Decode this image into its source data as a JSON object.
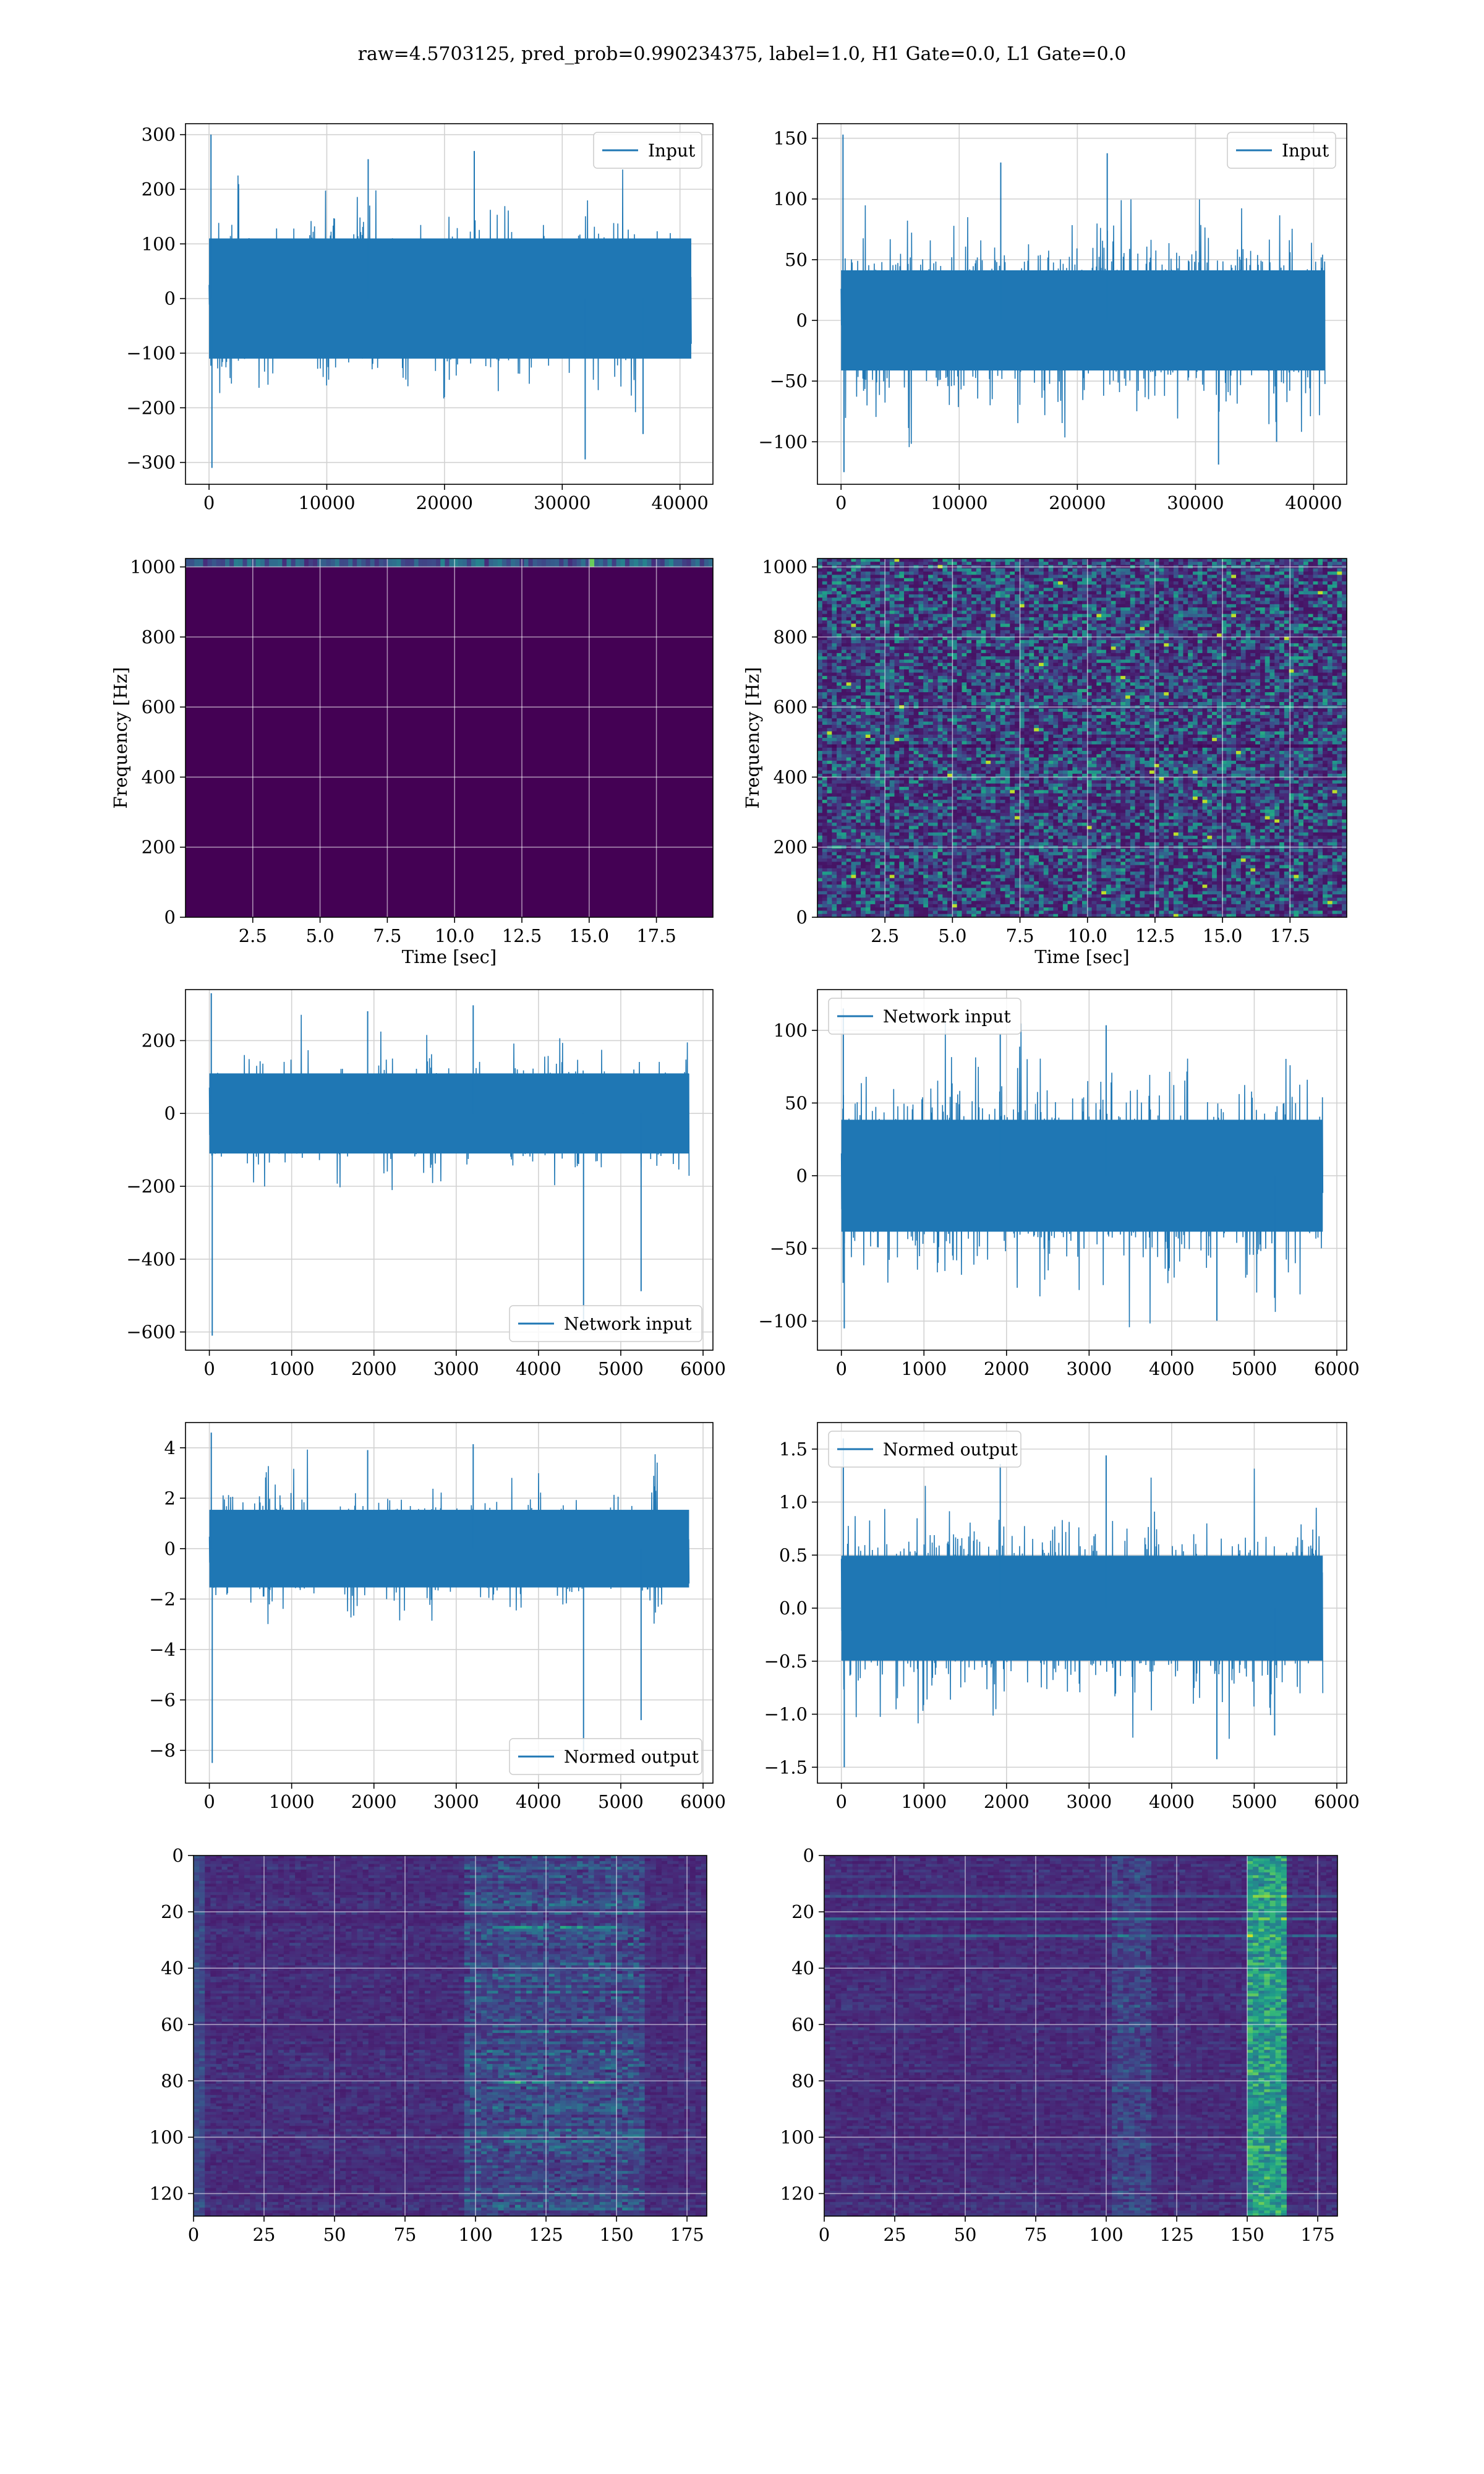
{
  "suptitle": "raw=4.5703125, pred_prob=0.990234375, label=1.0, H1 Gate=0.0, L1 Gate=0.0",
  "colors": {
    "line": "#1f77b4",
    "grid": "#d2d2d2",
    "viridis_dark": "#440154"
  },
  "chart_data": [
    {
      "id": "r1c1",
      "type": "line",
      "title": "",
      "xlabel": "",
      "ylabel": "",
      "xlim": [
        -2000,
        42800
      ],
      "ylim": [
        -340,
        320
      ],
      "xticks": [
        0,
        10000,
        20000,
        30000,
        40000
      ],
      "yticks": [
        -300,
        -200,
        -100,
        0,
        100,
        200,
        300
      ],
      "legend": {
        "label": "Input",
        "loc": "upper-right"
      },
      "series": [
        {
          "x_range": [
            0,
            40960
          ],
          "envelope_max": 300,
          "envelope_min": -310,
          "typical_amplitude": 200,
          "modulated": true
        }
      ]
    },
    {
      "id": "r1c2",
      "type": "line",
      "title": "",
      "xlabel": "",
      "ylabel": "",
      "xlim": [
        -2000,
        42800
      ],
      "ylim": [
        -135,
        162
      ],
      "xticks": [
        0,
        10000,
        20000,
        30000,
        40000
      ],
      "yticks": [
        -100,
        -50,
        0,
        50,
        100,
        150
      ],
      "legend": {
        "label": "Input",
        "loc": "upper-right"
      },
      "series": [
        {
          "x_range": [
            0,
            40960
          ],
          "envelope_max": 153,
          "envelope_min": -125,
          "typical_amplitude": 75,
          "modulated": false
        }
      ]
    },
    {
      "id": "r2c1",
      "type": "heatmap",
      "title": "",
      "xlabel": "Time [sec]",
      "ylabel": "Frequency [Hz]",
      "xlim": [
        0,
        19.6
      ],
      "ylim": [
        0,
        1024
      ],
      "xticks": [
        2.5,
        5.0,
        7.5,
        10.0,
        12.5,
        15.0,
        17.5
      ],
      "yticks": [
        0,
        200,
        400,
        600,
        800,
        1000
      ],
      "colormap": "viridis",
      "note": "mostly dark; energy concentrated at top frequency band"
    },
    {
      "id": "r2c2",
      "type": "heatmap",
      "title": "",
      "xlabel": "Time [sec]",
      "ylabel": "Frequency [Hz]",
      "xlim": [
        0,
        19.6
      ],
      "ylim": [
        0,
        1024
      ],
      "xticks": [
        2.5,
        5.0,
        7.5,
        10.0,
        12.5,
        15.0,
        17.5
      ],
      "yticks": [
        0,
        200,
        400,
        600,
        800,
        1000
      ],
      "colormap": "viridis",
      "note": "speckled noise spectrogram"
    },
    {
      "id": "r3c1",
      "type": "line",
      "title": "",
      "xlabel": "",
      "ylabel": "",
      "xlim": [
        -290,
        6120
      ],
      "ylim": [
        -650,
        340
      ],
      "xticks": [
        0,
        1000,
        2000,
        3000,
        4000,
        5000,
        6000
      ],
      "yticks": [
        -600,
        -400,
        -200,
        0,
        200
      ],
      "legend": {
        "label": "Network input",
        "loc": "lower-right"
      },
      "series": [
        {
          "x_range": [
            0,
            5830
          ],
          "envelope_max": 330,
          "envelope_min": -610,
          "typical_amplitude": 200,
          "modulated": true
        }
      ]
    },
    {
      "id": "r3c2",
      "type": "line",
      "title": "",
      "xlabel": "",
      "ylabel": "",
      "xlim": [
        -290,
        6120
      ],
      "ylim": [
        -120,
        128
      ],
      "xticks": [
        0,
        1000,
        2000,
        3000,
        4000,
        5000,
        6000
      ],
      "yticks": [
        -100,
        -50,
        0,
        50,
        100
      ],
      "legend": {
        "label": "Network input",
        "loc": "upper-left"
      },
      "series": [
        {
          "x_range": [
            0,
            5830
          ],
          "envelope_max": 115,
          "envelope_min": -105,
          "typical_amplitude": 70,
          "modulated": false
        }
      ]
    },
    {
      "id": "r4c1",
      "type": "line",
      "title": "",
      "xlabel": "",
      "ylabel": "",
      "xlim": [
        -290,
        6120
      ],
      "ylim": [
        -9.3,
        5.0
      ],
      "xticks": [
        0,
        1000,
        2000,
        3000,
        4000,
        5000,
        6000
      ],
      "yticks": [
        -8,
        -6,
        -4,
        -2,
        0,
        2,
        4
      ],
      "legend": {
        "label": "Normed output",
        "loc": "lower-right"
      },
      "series": [
        {
          "x_range": [
            0,
            5830
          ],
          "envelope_max": 4.6,
          "envelope_min": -8.5,
          "typical_amplitude": 2.8,
          "modulated": true
        }
      ]
    },
    {
      "id": "r4c2",
      "type": "line",
      "title": "",
      "xlabel": "",
      "ylabel": "",
      "xlim": [
        -290,
        6120
      ],
      "ylim": [
        -1.65,
        1.75
      ],
      "xticks": [
        0,
        1000,
        2000,
        3000,
        4000,
        5000,
        6000
      ],
      "yticks": [
        -1.5,
        -1.0,
        -0.5,
        0.0,
        0.5,
        1.0,
        1.5
      ],
      "legend": {
        "label": "Normed output",
        "loc": "upper-left"
      },
      "series": [
        {
          "x_range": [
            0,
            5830
          ],
          "envelope_max": 1.6,
          "envelope_min": -1.5,
          "typical_amplitude": 0.9,
          "modulated": false
        }
      ]
    },
    {
      "id": "r5c1",
      "type": "heatmap",
      "title": "",
      "xlabel": "",
      "ylabel": "",
      "xlim": [
        0,
        182
      ],
      "ylim": [
        128,
        0
      ],
      "xticks": [
        0,
        25,
        50,
        75,
        100,
        125,
        150,
        175
      ],
      "yticks": [
        0,
        20,
        40,
        60,
        80,
        100,
        120
      ],
      "colormap": "viridis",
      "note": "feature map with horizontal streaks, brighter around x=100-150"
    },
    {
      "id": "r5c2",
      "type": "heatmap",
      "title": "",
      "xlabel": "",
      "ylabel": "",
      "xlim": [
        0,
        182
      ],
      "ylim": [
        128,
        0
      ],
      "xticks": [
        0,
        25,
        50,
        75,
        100,
        125,
        150,
        175
      ],
      "yticks": [
        0,
        20,
        40,
        60,
        80,
        100,
        120
      ],
      "colormap": "viridis",
      "note": "feature map with bright vertical band near x=155"
    }
  ]
}
